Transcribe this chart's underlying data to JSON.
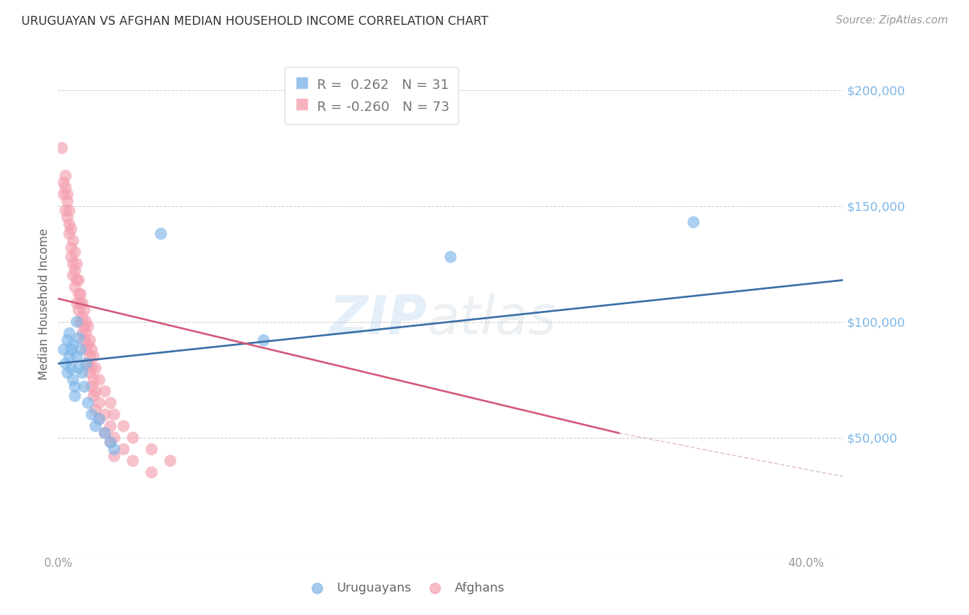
{
  "title": "URUGUAYAN VS AFGHAN MEDIAN HOUSEHOLD INCOME CORRELATION CHART",
  "source": "Source: ZipAtlas.com",
  "ylabel": "Median Household Income",
  "yticks": [
    0,
    50000,
    100000,
    150000,
    200000
  ],
  "ytick_labels": [
    "",
    "$50,000",
    "$100,000",
    "$150,000",
    "$200,000"
  ],
  "xticks": [
    0.0,
    0.1,
    0.2,
    0.3,
    0.4
  ],
  "xtick_labels": [
    "0.0%",
    "",
    "",
    "",
    "40.0%"
  ],
  "xlim": [
    0.0,
    0.42
  ],
  "ylim": [
    0,
    215000
  ],
  "watermark_zip": "ZIP",
  "watermark_atlas": "atlas",
  "blue_color": "#7EB6E8",
  "pink_color": "#F4A0B0",
  "blue_line_color": "#3A6FA8",
  "pink_line_color": "#D45A7A",
  "dashed_color": "#D0A0B0",
  "uruguayan_points": [
    [
      0.003,
      88000
    ],
    [
      0.004,
      82000
    ],
    [
      0.005,
      78000
    ],
    [
      0.005,
      92000
    ],
    [
      0.006,
      85000
    ],
    [
      0.006,
      95000
    ],
    [
      0.007,
      88000
    ],
    [
      0.007,
      80000
    ],
    [
      0.008,
      75000
    ],
    [
      0.008,
      90000
    ],
    [
      0.009,
      72000
    ],
    [
      0.009,
      68000
    ],
    [
      0.01,
      100000
    ],
    [
      0.01,
      85000
    ],
    [
      0.011,
      93000
    ],
    [
      0.011,
      80000
    ],
    [
      0.012,
      88000
    ],
    [
      0.013,
      78000
    ],
    [
      0.014,
      72000
    ],
    [
      0.015,
      82000
    ],
    [
      0.016,
      65000
    ],
    [
      0.018,
      60000
    ],
    [
      0.02,
      55000
    ],
    [
      0.022,
      58000
    ],
    [
      0.025,
      52000
    ],
    [
      0.028,
      48000
    ],
    [
      0.03,
      45000
    ],
    [
      0.055,
      138000
    ],
    [
      0.11,
      92000
    ],
    [
      0.34,
      143000
    ],
    [
      0.21,
      128000
    ]
  ],
  "afghan_points": [
    [
      0.002,
      175000
    ],
    [
      0.003,
      160000
    ],
    [
      0.003,
      155000
    ],
    [
      0.004,
      163000
    ],
    [
      0.004,
      158000
    ],
    [
      0.004,
      148000
    ],
    [
      0.005,
      155000
    ],
    [
      0.005,
      152000
    ],
    [
      0.005,
      145000
    ],
    [
      0.006,
      148000
    ],
    [
      0.006,
      142000
    ],
    [
      0.006,
      138000
    ],
    [
      0.007,
      140000
    ],
    [
      0.007,
      132000
    ],
    [
      0.007,
      128000
    ],
    [
      0.008,
      135000
    ],
    [
      0.008,
      125000
    ],
    [
      0.008,
      120000
    ],
    [
      0.009,
      130000
    ],
    [
      0.009,
      122000
    ],
    [
      0.009,
      115000
    ],
    [
      0.01,
      125000
    ],
    [
      0.01,
      118000
    ],
    [
      0.01,
      108000
    ],
    [
      0.011,
      118000
    ],
    [
      0.011,
      112000
    ],
    [
      0.011,
      105000
    ],
    [
      0.012,
      112000
    ],
    [
      0.012,
      108000
    ],
    [
      0.012,
      100000
    ],
    [
      0.013,
      108000
    ],
    [
      0.013,
      102000
    ],
    [
      0.013,
      95000
    ],
    [
      0.014,
      105000
    ],
    [
      0.014,
      98000
    ],
    [
      0.014,
      92000
    ],
    [
      0.015,
      100000
    ],
    [
      0.015,
      95000
    ],
    [
      0.015,
      88000
    ],
    [
      0.016,
      98000
    ],
    [
      0.016,
      90000
    ],
    [
      0.016,
      82000
    ],
    [
      0.017,
      92000
    ],
    [
      0.017,
      85000
    ],
    [
      0.017,
      78000
    ],
    [
      0.018,
      88000
    ],
    [
      0.018,
      80000
    ],
    [
      0.018,
      72000
    ],
    [
      0.019,
      85000
    ],
    [
      0.019,
      75000
    ],
    [
      0.019,
      68000
    ],
    [
      0.02,
      80000
    ],
    [
      0.02,
      70000
    ],
    [
      0.02,
      62000
    ],
    [
      0.022,
      75000
    ],
    [
      0.022,
      65000
    ],
    [
      0.022,
      58000
    ],
    [
      0.025,
      70000
    ],
    [
      0.025,
      60000
    ],
    [
      0.025,
      52000
    ],
    [
      0.028,
      65000
    ],
    [
      0.028,
      55000
    ],
    [
      0.028,
      48000
    ],
    [
      0.03,
      60000
    ],
    [
      0.03,
      50000
    ],
    [
      0.03,
      42000
    ],
    [
      0.035,
      55000
    ],
    [
      0.035,
      45000
    ],
    [
      0.04,
      50000
    ],
    [
      0.04,
      40000
    ],
    [
      0.05,
      45000
    ],
    [
      0.05,
      35000
    ],
    [
      0.06,
      40000
    ]
  ],
  "blue_line_x": [
    0.0,
    0.42
  ],
  "blue_line_y": [
    82000,
    118000
  ],
  "pink_line_x": [
    0.0,
    0.3
  ],
  "pink_line_y": [
    110000,
    52000
  ],
  "dashed_line_x": [
    0.3,
    0.6
  ],
  "dashed_line_y": [
    52000,
    5000
  ],
  "legend_label1": "R =  0.262   N = 31",
  "legend_label2": "R = -0.260   N = 73",
  "bottom_label1": "Uruguayans",
  "bottom_label2": "Afghans"
}
